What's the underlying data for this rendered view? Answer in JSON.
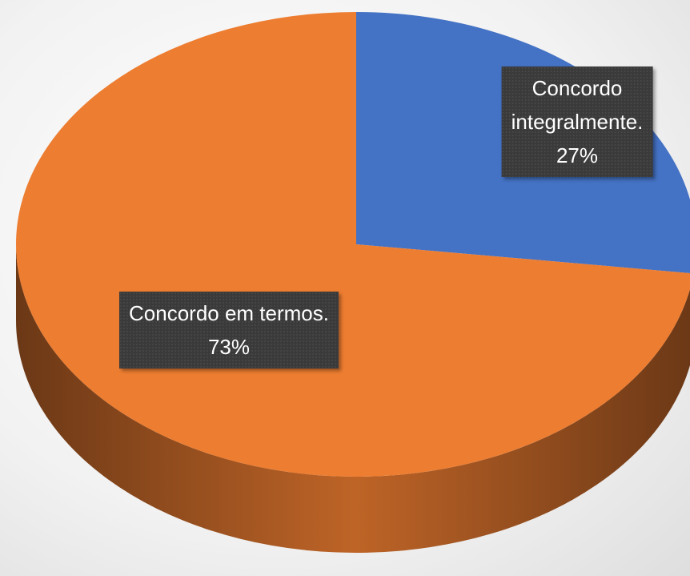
{
  "chart_data": {
    "type": "pie",
    "categories": [
      "Concordo integralmente.",
      "Concordo em termos."
    ],
    "values": [
      27,
      73
    ],
    "value_labels": [
      "27%",
      "73%"
    ],
    "colors": [
      "#4472c4",
      "#ed7d31"
    ]
  }
}
